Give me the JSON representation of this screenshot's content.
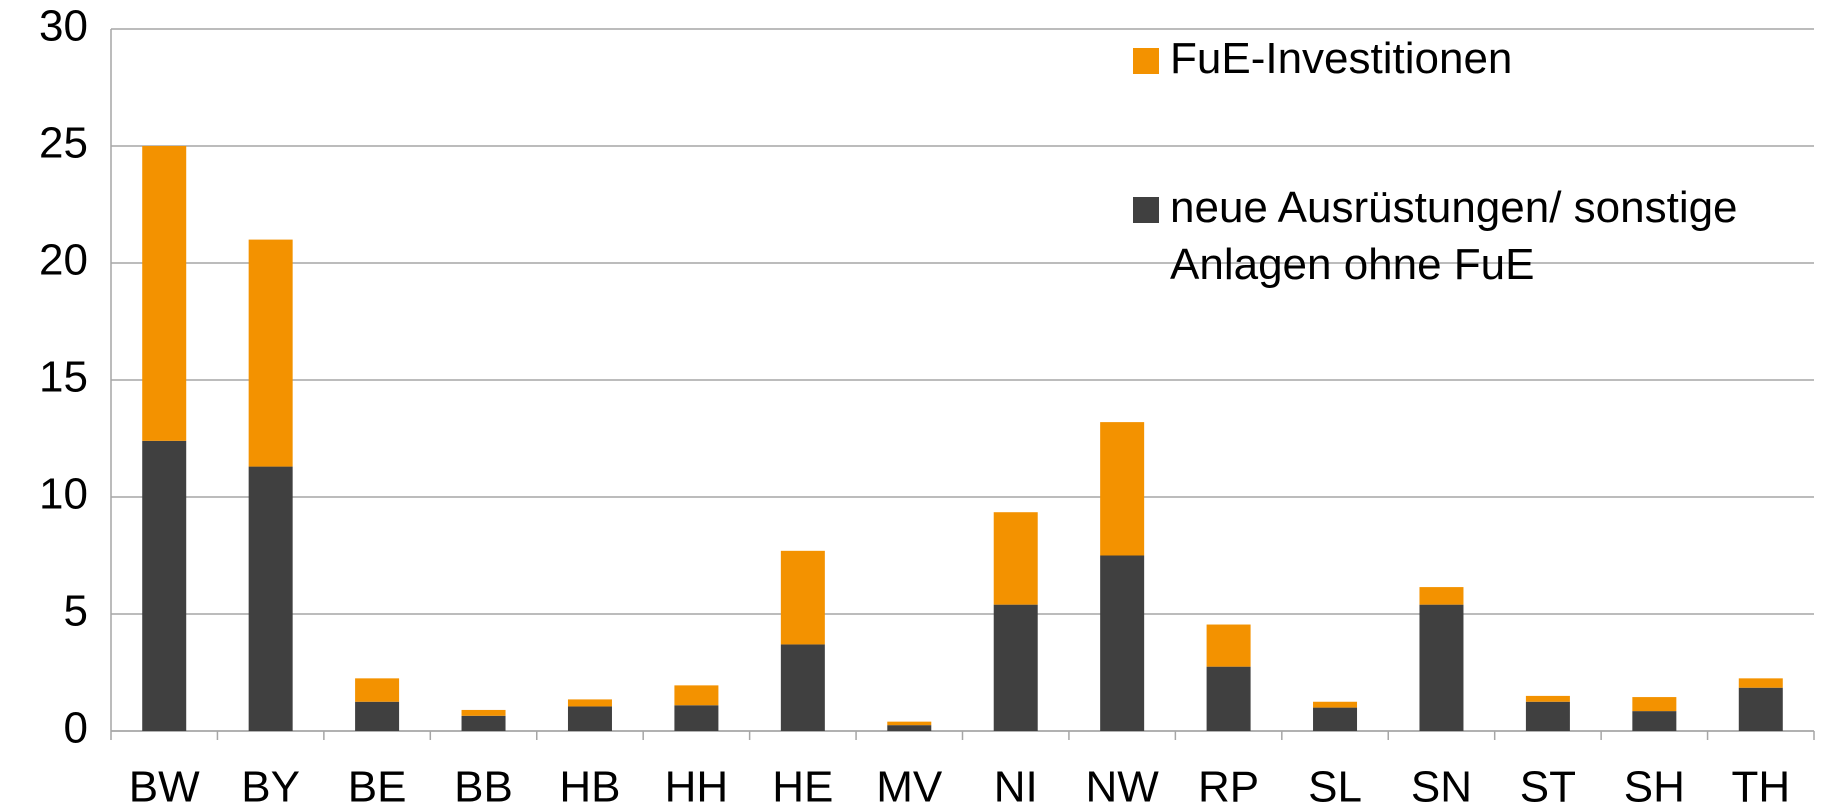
{
  "chart_data": {
    "type": "stacked_bar",
    "categories": [
      "BW",
      "BY",
      "BE",
      "BB",
      "HB",
      "HH",
      "HE",
      "MV",
      "NI",
      "NW",
      "RP",
      "SL",
      "SN",
      "ST",
      "SH",
      "TH"
    ],
    "series": [
      {
        "name": "neue Ausrüstungen/ sonstige Anlagen ohne FuE",
        "color": "#404040",
        "values": [
          12.4,
          11.3,
          1.25,
          0.65,
          1.05,
          1.1,
          3.7,
          0.25,
          5.4,
          7.5,
          2.75,
          1.0,
          5.4,
          1.25,
          0.85,
          1.85
        ]
      },
      {
        "name": "FuE-Investitionen",
        "color": "#f39200",
        "values": [
          12.6,
          9.7,
          1.0,
          0.25,
          0.3,
          0.85,
          4.0,
          0.15,
          3.95,
          5.7,
          1.8,
          0.25,
          0.75,
          0.25,
          0.6,
          0.4
        ]
      }
    ],
    "ylim": [
      0,
      30
    ],
    "yticks": [
      0,
      5,
      10,
      15,
      20,
      25,
      30
    ],
    "grid": true,
    "legend": "top-right"
  }
}
